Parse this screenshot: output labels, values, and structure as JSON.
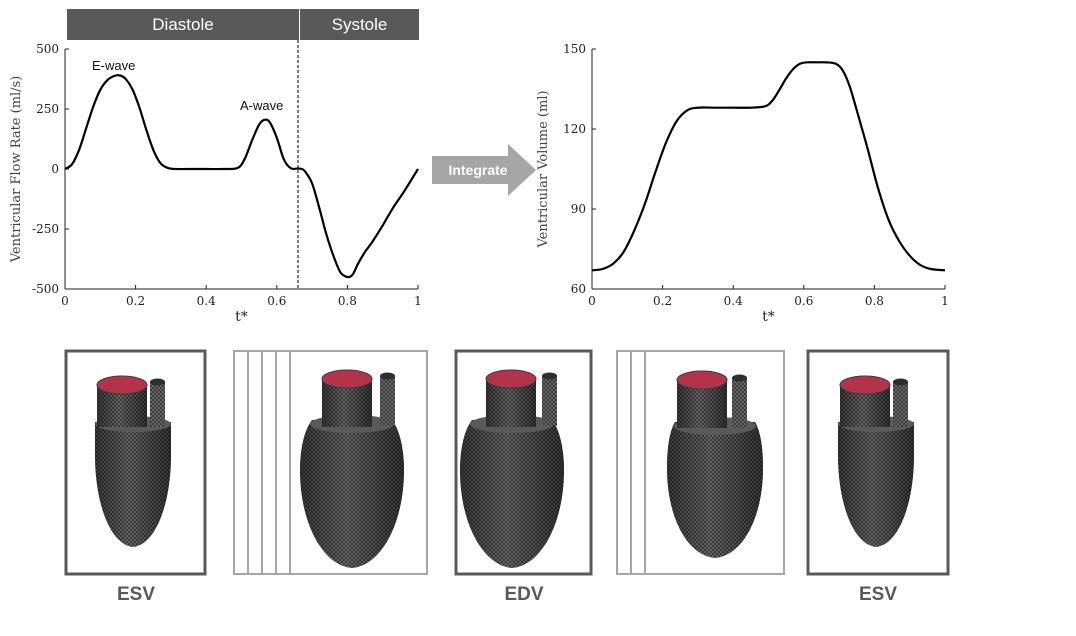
{
  "phases": {
    "diastole": "Diastole",
    "systole": "Systole"
  },
  "arrow_label": "Integrate",
  "frame_labels": {
    "esv_left": "ESV",
    "edv": "EDV",
    "esv_right": "ESV"
  },
  "colors": {
    "phase_bar": "#595959",
    "arrow": "#a6a6a6",
    "cap": "#b3344a",
    "mesh": "#3c3c3c",
    "frame_dark": "#595959",
    "frame_light": "#a6a6a6"
  },
  "chart_data": [
    {
      "type": "line",
      "xlabel": "t*",
      "ylabel": "Ventricular Flow Rate (ml/s)",
      "xlim": [
        0,
        1
      ],
      "ylim": [
        -500,
        500
      ],
      "xticks": [
        "0",
        "0.2",
        "0.4",
        "0.6",
        "0.8",
        "1"
      ],
      "yticks": [
        "500",
        "250",
        "0",
        "-250",
        "-500"
      ],
      "annotations": [
        "E-wave",
        "A-wave"
      ],
      "divider_x": 0.66,
      "x": [
        0,
        0.02,
        0.04,
        0.06,
        0.08,
        0.1,
        0.12,
        0.14,
        0.155,
        0.17,
        0.19,
        0.21,
        0.23,
        0.25,
        0.27,
        0.29,
        0.31,
        0.35,
        0.4,
        0.45,
        0.49,
        0.51,
        0.53,
        0.55,
        0.565,
        0.58,
        0.6,
        0.62,
        0.64,
        0.66,
        0.67,
        0.68,
        0.7,
        0.72,
        0.74,
        0.76,
        0.78,
        0.8,
        0.815,
        0.83,
        0.85,
        0.87,
        0.9,
        0.93,
        0.96,
        1.0
      ],
      "y": [
        0,
        20,
        80,
        170,
        260,
        330,
        370,
        388,
        390,
        378,
        335,
        260,
        165,
        80,
        25,
        5,
        0,
        0,
        0,
        0,
        5,
        45,
        120,
        185,
        205,
        195,
        130,
        40,
        3,
        2,
        0,
        -10,
        -60,
        -160,
        -270,
        -360,
        -430,
        -450,
        -440,
        -395,
        -345,
        -305,
        -235,
        -160,
        -95,
        0
      ]
    },
    {
      "type": "line",
      "xlabel": "t*",
      "ylabel": "Ventricular Volume (ml)",
      "xlim": [
        0,
        1
      ],
      "ylim": [
        60,
        150
      ],
      "xticks": [
        "0",
        "0.2",
        "0.4",
        "0.6",
        "0.8",
        "1"
      ],
      "yticks": [
        "150",
        "120",
        "90",
        "60"
      ],
      "x": [
        0,
        0.03,
        0.06,
        0.09,
        0.12,
        0.15,
        0.18,
        0.21,
        0.24,
        0.27,
        0.3,
        0.35,
        0.4,
        0.45,
        0.49,
        0.51,
        0.53,
        0.55,
        0.57,
        0.59,
        0.61,
        0.63,
        0.66,
        0.69,
        0.71,
        0.73,
        0.75,
        0.78,
        0.81,
        0.84,
        0.87,
        0.9,
        0.93,
        0.96,
        1.0
      ],
      "y": [
        67,
        67.5,
        69.5,
        74,
        82,
        92,
        104,
        115,
        123,
        127,
        128,
        128,
        128,
        128,
        128.5,
        130.5,
        134.5,
        139,
        142.5,
        144.5,
        145,
        145,
        145,
        144.5,
        142,
        136,
        127,
        113,
        98,
        86,
        78,
        72.5,
        69,
        67.5,
        67
      ]
    }
  ]
}
